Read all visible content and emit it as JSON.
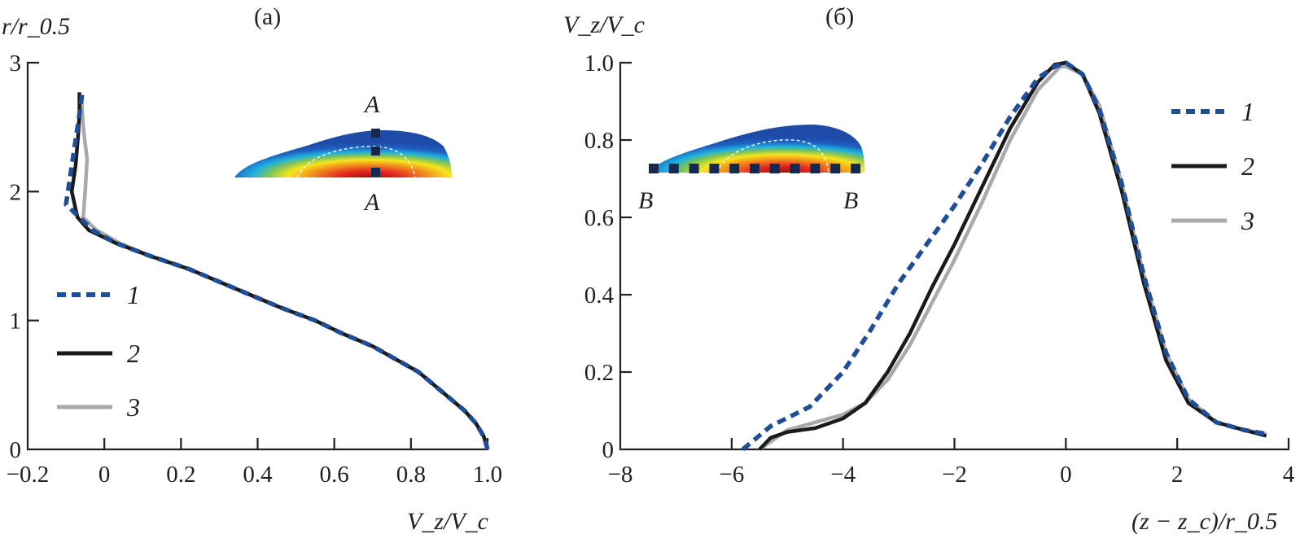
{
  "chart_data": [
    {
      "type": "line",
      "panel_label": "(a)",
      "xlabel": "V_z/V_c",
      "ylabel": "r/r_0.5",
      "xlim": [
        -0.2,
        1.0
      ],
      "ylim": [
        0,
        3
      ],
      "xticks": [
        "−0.2",
        "0",
        "0.2",
        "0.4",
        "0.6",
        "0.8",
        "1.0"
      ],
      "xtick_values": [
        -0.2,
        0,
        0.2,
        0.4,
        0.6,
        0.8,
        1.0
      ],
      "yticks": [
        "0",
        "1",
        "2",
        "3"
      ],
      "ytick_values": [
        0,
        1,
        2,
        3
      ],
      "grid": false,
      "legend_position": "left-middle",
      "inset": {
        "description_label_top": "A",
        "description_label_bottom": "A"
      },
      "series": [
        {
          "name": "1",
          "style": "dashed",
          "color": "#1f4e96",
          "points": [
            [
              1.0,
              0
            ],
            [
              0.99,
              0.1
            ],
            [
              0.97,
              0.2
            ],
            [
              0.94,
              0.3
            ],
            [
              0.9,
              0.4
            ],
            [
              0.86,
              0.5
            ],
            [
              0.82,
              0.6
            ],
            [
              0.76,
              0.7
            ],
            [
              0.7,
              0.8
            ],
            [
              0.62,
              0.9
            ],
            [
              0.55,
              1.0
            ],
            [
              0.46,
              1.1
            ],
            [
              0.38,
              1.2
            ],
            [
              0.3,
              1.3
            ],
            [
              0.22,
              1.4
            ],
            [
              0.12,
              1.5
            ],
            [
              0.03,
              1.6
            ],
            [
              -0.03,
              1.7
            ],
            [
              -0.065,
              1.8
            ],
            [
              -0.1,
              1.9
            ],
            [
              -0.095,
              2.0
            ],
            [
              -0.085,
              2.2
            ],
            [
              -0.075,
              2.4
            ],
            [
              -0.065,
              2.6
            ],
            [
              -0.058,
              2.75
            ]
          ]
        },
        {
          "name": "2",
          "style": "solid",
          "color": "#1a1a1a",
          "points": [
            [
              1.0,
              0
            ],
            [
              0.99,
              0.1
            ],
            [
              0.97,
              0.2
            ],
            [
              0.94,
              0.3
            ],
            [
              0.9,
              0.4
            ],
            [
              0.86,
              0.5
            ],
            [
              0.82,
              0.6
            ],
            [
              0.76,
              0.7
            ],
            [
              0.7,
              0.8
            ],
            [
              0.62,
              0.9
            ],
            [
              0.55,
              1.0
            ],
            [
              0.46,
              1.1
            ],
            [
              0.38,
              1.2
            ],
            [
              0.3,
              1.3
            ],
            [
              0.22,
              1.4
            ],
            [
              0.12,
              1.5
            ],
            [
              0.03,
              1.6
            ],
            [
              -0.04,
              1.7
            ],
            [
              -0.07,
              1.8
            ],
            [
              -0.085,
              2.0
            ],
            [
              -0.075,
              2.2
            ],
            [
              -0.068,
              2.45
            ],
            [
              -0.065,
              2.6
            ],
            [
              -0.065,
              2.77
            ]
          ]
        },
        {
          "name": "3",
          "style": "solid",
          "color": "#a8a9ac",
          "points": [
            [
              1.0,
              0
            ],
            [
              0.99,
              0.1
            ],
            [
              0.97,
              0.2
            ],
            [
              0.94,
              0.3
            ],
            [
              0.9,
              0.4
            ],
            [
              0.86,
              0.5
            ],
            [
              0.82,
              0.6
            ],
            [
              0.76,
              0.7
            ],
            [
              0.7,
              0.8
            ],
            [
              0.62,
              0.9
            ],
            [
              0.55,
              1.0
            ],
            [
              0.46,
              1.1
            ],
            [
              0.38,
              1.2
            ],
            [
              0.3,
              1.3
            ],
            [
              0.22,
              1.4
            ],
            [
              0.12,
              1.5
            ],
            [
              0.04,
              1.6
            ],
            [
              -0.02,
              1.7
            ],
            [
              -0.055,
              1.8
            ],
            [
              -0.05,
              2.0
            ],
            [
              -0.045,
              2.25
            ],
            [
              -0.055,
              2.5
            ],
            [
              -0.06,
              2.75
            ]
          ]
        }
      ]
    },
    {
      "type": "line",
      "panel_label": "(б)",
      "xlabel": "(z − z_c)/r_0.5",
      "ylabel": "V_z/V_c",
      "xlim": [
        -8,
        4
      ],
      "ylim": [
        0,
        1.0
      ],
      "xticks": [
        "−8",
        "−6",
        "−4",
        "−2",
        "0",
        "2",
        "4"
      ],
      "xtick_values": [
        -8,
        -6,
        -4,
        -2,
        0,
        2,
        4
      ],
      "yticks": [
        "0",
        "0.2",
        "0.4",
        "0.6",
        "0.8",
        "1.0"
      ],
      "ytick_values": [
        0,
        0.2,
        0.4,
        0.6,
        0.8,
        1.0
      ],
      "grid": false,
      "legend_position": "top-right",
      "inset": {
        "description_label_top": "B",
        "description_label_bottom": "B"
      },
      "series": [
        {
          "name": "1",
          "style": "dashed",
          "color": "#1f4e96",
          "points": [
            [
              -5.8,
              0
            ],
            [
              -5.3,
              0.06
            ],
            [
              -4.6,
              0.11
            ],
            [
              -4.0,
              0.2
            ],
            [
              -3.5,
              0.31
            ],
            [
              -3.0,
              0.43
            ],
            [
              -2.5,
              0.53
            ],
            [
              -2.0,
              0.63
            ],
            [
              -1.5,
              0.74
            ],
            [
              -1.0,
              0.86
            ],
            [
              -0.5,
              0.96
            ],
            [
              -0.2,
              0.99
            ],
            [
              0,
              1.0
            ],
            [
              0.3,
              0.97
            ],
            [
              0.6,
              0.88
            ],
            [
              1.0,
              0.69
            ],
            [
              1.4,
              0.45
            ],
            [
              1.8,
              0.25
            ],
            [
              2.2,
              0.13
            ],
            [
              2.7,
              0.07
            ],
            [
              3.2,
              0.05
            ],
            [
              3.6,
              0.04
            ]
          ]
        },
        {
          "name": "2",
          "style": "solid",
          "color": "#1a1a1a",
          "points": [
            [
              -5.5,
              0
            ],
            [
              -5.3,
              0.03
            ],
            [
              -5.0,
              0.045
            ],
            [
              -4.5,
              0.055
            ],
            [
              -4.0,
              0.08
            ],
            [
              -3.6,
              0.12
            ],
            [
              -3.2,
              0.2
            ],
            [
              -2.8,
              0.3
            ],
            [
              -2.4,
              0.42
            ],
            [
              -2.0,
              0.53
            ],
            [
              -1.5,
              0.68
            ],
            [
              -1.0,
              0.83
            ],
            [
              -0.5,
              0.95
            ],
            [
              -0.2,
              0.995
            ],
            [
              0,
              1.0
            ],
            [
              0.3,
              0.97
            ],
            [
              0.6,
              0.87
            ],
            [
              1.0,
              0.67
            ],
            [
              1.4,
              0.43
            ],
            [
              1.8,
              0.23
            ],
            [
              2.2,
              0.12
            ],
            [
              2.7,
              0.07
            ],
            [
              3.2,
              0.05
            ],
            [
              3.6,
              0.035
            ]
          ]
        },
        {
          "name": "3",
          "style": "solid",
          "color": "#a8a9ac",
          "points": [
            [
              -5.5,
              0
            ],
            [
              -5.0,
              0.05
            ],
            [
              -4.5,
              0.07
            ],
            [
              -4.0,
              0.09
            ],
            [
              -3.6,
              0.12
            ],
            [
              -3.2,
              0.18
            ],
            [
              -2.8,
              0.27
            ],
            [
              -2.4,
              0.38
            ],
            [
              -2.0,
              0.49
            ],
            [
              -1.5,
              0.64
            ],
            [
              -1.0,
              0.8
            ],
            [
              -0.5,
              0.93
            ],
            [
              -0.1,
              0.99
            ],
            [
              0,
              0.99
            ],
            [
              0.3,
              0.97
            ],
            [
              0.6,
              0.89
            ],
            [
              1.0,
              0.69
            ],
            [
              1.4,
              0.45
            ],
            [
              1.8,
              0.25
            ],
            [
              2.2,
              0.13
            ],
            [
              2.7,
              0.07
            ],
            [
              3.2,
              0.05
            ],
            [
              3.6,
              0.04
            ]
          ]
        }
      ]
    }
  ]
}
